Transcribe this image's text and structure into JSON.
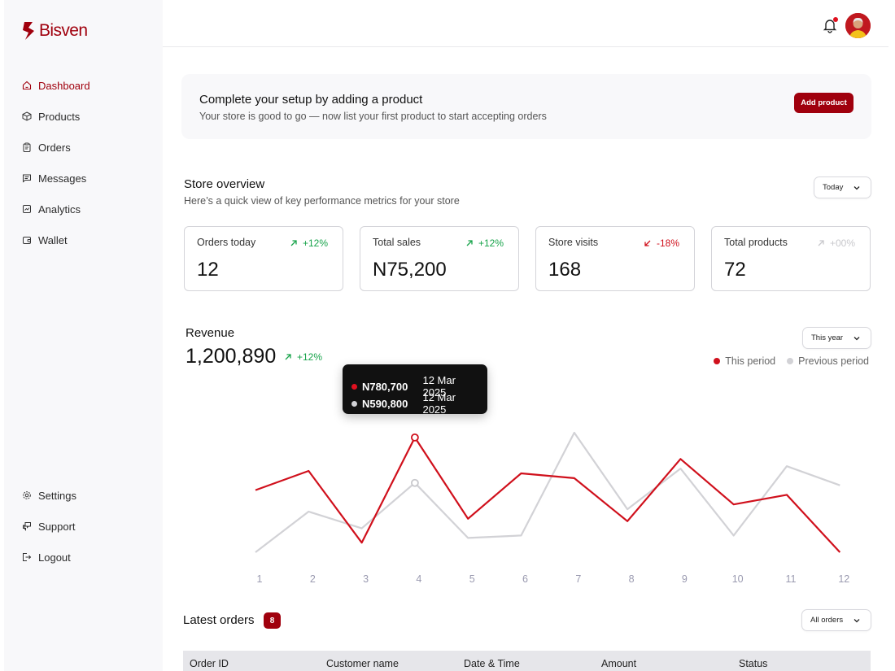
{
  "brand": {
    "name": "Bisven",
    "color": "#a0000d"
  },
  "sidebar": {
    "items": [
      {
        "label": "Dashboard",
        "icon": "home-icon",
        "active": true
      },
      {
        "label": "Products",
        "icon": "box-icon"
      },
      {
        "label": "Orders",
        "icon": "clipboard-icon"
      },
      {
        "label": "Messages",
        "icon": "message-icon"
      },
      {
        "label": "Analytics",
        "icon": "chart-icon"
      },
      {
        "label": "Wallet",
        "icon": "wallet-icon"
      }
    ],
    "bottom_items": [
      {
        "label": "Settings",
        "icon": "gear-icon"
      },
      {
        "label": "Support",
        "icon": "support-icon"
      },
      {
        "label": "Logout",
        "icon": "logout-icon"
      }
    ]
  },
  "topbar": {
    "notification_icon": "bell-icon",
    "has_unread": true
  },
  "banner": {
    "title": "Complete your setup by adding a product",
    "subtitle": "Your store is good to go — now list your first product to start accepting orders",
    "button_label": "Add product"
  },
  "overview": {
    "title": "Store overview",
    "subtitle": "Here’s a quick view of key performance metrics for your store",
    "range_label": "Today",
    "stats": [
      {
        "label": "Orders today",
        "value": "12",
        "trend": "+12%",
        "direction": "up"
      },
      {
        "label": "Total sales",
        "value": "N75,200",
        "trend": "+12%",
        "direction": "up"
      },
      {
        "label": "Store visits",
        "value": "168",
        "trend": "-18%",
        "direction": "down"
      },
      {
        "label": "Total products",
        "value": "72",
        "trend": "+00%",
        "direction": "flat"
      }
    ]
  },
  "revenue": {
    "title": "Revenue",
    "total": "1,200,890",
    "trend": "+12%",
    "range_label": "This year",
    "legend": {
      "current": "This period",
      "previous": "Previous period"
    },
    "tooltip": {
      "current_value": "N780,700",
      "current_date": "12 Mar 2025",
      "previous_value": "N590,800",
      "previous_date": "12 Mar 2025"
    }
  },
  "chart_data": {
    "type": "line",
    "x": [
      "1",
      "2",
      "3",
      "4",
      "5",
      "6",
      "7",
      "8",
      "9",
      "10",
      "11",
      "12"
    ],
    "series": [
      {
        "name": "This period",
        "color": "#d0101c",
        "values": [
          560,
          640,
          340,
          780,
          440,
          630,
          610,
          430,
          690,
          500,
          540,
          300
        ]
      },
      {
        "name": "Previous period",
        "color": "#d2d2d6",
        "values": [
          300,
          470,
          400,
          590,
          360,
          370,
          800,
          480,
          650,
          370,
          660,
          580
        ]
      }
    ],
    "highlight_index": 3
  },
  "orders": {
    "title": "Latest orders",
    "count": "8",
    "filter_label": "All orders",
    "columns": [
      "Order ID",
      "Customer name",
      "Date & Time",
      "Amount",
      "Status"
    ]
  }
}
